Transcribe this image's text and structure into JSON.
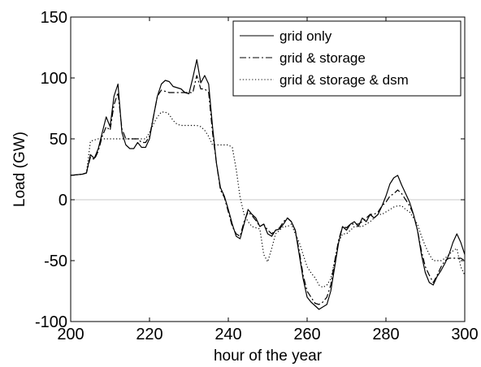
{
  "chart_data": {
    "type": "line",
    "title": "",
    "xlabel": "hour of the year",
    "ylabel": "Load (GW)",
    "xlim": [
      200,
      300
    ],
    "ylim": [
      -100,
      150
    ],
    "xticks": [
      200,
      220,
      240,
      260,
      280,
      300
    ],
    "yticks": [
      -100,
      -50,
      0,
      50,
      100,
      150
    ],
    "grid": false,
    "zero_line": true,
    "legend": {
      "position": "top-right"
    },
    "series": [
      {
        "name": "grid only",
        "style": "solid",
        "color": "#000000",
        "points": [
          [
            200,
            20
          ],
          [
            203,
            21
          ],
          [
            204,
            22
          ],
          [
            205,
            37
          ],
          [
            206,
            34
          ],
          [
            207,
            42
          ],
          [
            208,
            55
          ],
          [
            209,
            68
          ],
          [
            210,
            60
          ],
          [
            211,
            85
          ],
          [
            212,
            95
          ],
          [
            213,
            55
          ],
          [
            214,
            45
          ],
          [
            215,
            42
          ],
          [
            216,
            42
          ],
          [
            217,
            47
          ],
          [
            218,
            43
          ],
          [
            219,
            43
          ],
          [
            220,
            50
          ],
          [
            221,
            68
          ],
          [
            222,
            85
          ],
          [
            223,
            95
          ],
          [
            224,
            98
          ],
          [
            225,
            97
          ],
          [
            226,
            93
          ],
          [
            227,
            92
          ],
          [
            228,
            91
          ],
          [
            229,
            88
          ],
          [
            230,
            87
          ],
          [
            231,
            100
          ],
          [
            232,
            115
          ],
          [
            233,
            96
          ],
          [
            234,
            102
          ],
          [
            235,
            95
          ],
          [
            236,
            60
          ],
          [
            237,
            30
          ],
          [
            238,
            10
          ],
          [
            239,
            3
          ],
          [
            240,
            -8
          ],
          [
            241,
            -20
          ],
          [
            242,
            -30
          ],
          [
            243,
            -32
          ],
          [
            244,
            -20
          ],
          [
            245,
            -8
          ],
          [
            246,
            -12
          ],
          [
            247,
            -15
          ],
          [
            248,
            -22
          ],
          [
            249,
            -20
          ],
          [
            250,
            -28
          ],
          [
            251,
            -30
          ],
          [
            252,
            -25
          ],
          [
            253,
            -24
          ],
          [
            254,
            -20
          ],
          [
            255,
            -15
          ],
          [
            256,
            -18
          ],
          [
            257,
            -25
          ],
          [
            258,
            -45
          ],
          [
            259,
            -65
          ],
          [
            260,
            -80
          ],
          [
            261,
            -84
          ],
          [
            262,
            -87
          ],
          [
            263,
            -90
          ],
          [
            264,
            -88
          ],
          [
            265,
            -86
          ],
          [
            266,
            -75
          ],
          [
            267,
            -55
          ],
          [
            268,
            -35
          ],
          [
            269,
            -22
          ],
          [
            270,
            -25
          ],
          [
            271,
            -20
          ],
          [
            272,
            -18
          ],
          [
            273,
            -22
          ],
          [
            274,
            -15
          ],
          [
            275,
            -18
          ],
          [
            276,
            -12
          ],
          [
            277,
            -15
          ],
          [
            278,
            -12
          ],
          [
            279,
            -5
          ],
          [
            280,
            3
          ],
          [
            281,
            13
          ],
          [
            282,
            18
          ],
          [
            283,
            20
          ],
          [
            284,
            12
          ],
          [
            285,
            5
          ],
          [
            286,
            -2
          ],
          [
            287,
            -12
          ],
          [
            288,
            -25
          ],
          [
            289,
            -45
          ],
          [
            290,
            -60
          ],
          [
            291,
            -68
          ],
          [
            292,
            -70
          ],
          [
            293,
            -63
          ],
          [
            294,
            -58
          ],
          [
            295,
            -52
          ],
          [
            296,
            -45
          ],
          [
            297,
            -35
          ],
          [
            298,
            -28
          ],
          [
            299,
            -35
          ],
          [
            300,
            -45
          ]
        ]
      },
      {
        "name": "grid & storage",
        "style": "dashdot",
        "color": "#000000",
        "points": [
          [
            200,
            20
          ],
          [
            203,
            21
          ],
          [
            204,
            22
          ],
          [
            205,
            35
          ],
          [
            206,
            33
          ],
          [
            207,
            40
          ],
          [
            208,
            52
          ],
          [
            209,
            60
          ],
          [
            210,
            57
          ],
          [
            211,
            78
          ],
          [
            212,
            88
          ],
          [
            213,
            58
          ],
          [
            214,
            50
          ],
          [
            215,
            50
          ],
          [
            216,
            50
          ],
          [
            217,
            50
          ],
          [
            218,
            47
          ],
          [
            219,
            47
          ],
          [
            220,
            52
          ],
          [
            221,
            68
          ],
          [
            222,
            85
          ],
          [
            223,
            90
          ],
          [
            224,
            89
          ],
          [
            225,
            88
          ],
          [
            226,
            88
          ],
          [
            227,
            88
          ],
          [
            228,
            88
          ],
          [
            229,
            88
          ],
          [
            230,
            88
          ],
          [
            231,
            88
          ],
          [
            232,
            102
          ],
          [
            233,
            91
          ],
          [
            234,
            91
          ],
          [
            235,
            88
          ],
          [
            236,
            55
          ],
          [
            237,
            30
          ],
          [
            238,
            8
          ],
          [
            239,
            2
          ],
          [
            240,
            -10
          ],
          [
            241,
            -22
          ],
          [
            242,
            -28
          ],
          [
            243,
            -30
          ],
          [
            244,
            -18
          ],
          [
            245,
            -10
          ],
          [
            246,
            -13
          ],
          [
            247,
            -17
          ],
          [
            248,
            -22
          ],
          [
            249,
            -20
          ],
          [
            250,
            -25
          ],
          [
            251,
            -28
          ],
          [
            252,
            -25
          ],
          [
            253,
            -23
          ],
          [
            254,
            -18
          ],
          [
            255,
            -15
          ],
          [
            256,
            -18
          ],
          [
            257,
            -25
          ],
          [
            258,
            -42
          ],
          [
            259,
            -62
          ],
          [
            260,
            -75
          ],
          [
            261,
            -80
          ],
          [
            262,
            -85
          ],
          [
            263,
            -86
          ],
          [
            264,
            -84
          ],
          [
            265,
            -80
          ],
          [
            266,
            -70
          ],
          [
            267,
            -50
          ],
          [
            268,
            -33
          ],
          [
            269,
            -22
          ],
          [
            270,
            -23
          ],
          [
            271,
            -20
          ],
          [
            272,
            -20
          ],
          [
            273,
            -20
          ],
          [
            274,
            -18
          ],
          [
            275,
            -15
          ],
          [
            276,
            -12
          ],
          [
            277,
            -12
          ],
          [
            278,
            -10
          ],
          [
            279,
            -5
          ],
          [
            280,
            -2
          ],
          [
            281,
            3
          ],
          [
            282,
            5
          ],
          [
            283,
            8
          ],
          [
            284,
            5
          ],
          [
            285,
            0
          ],
          [
            286,
            -5
          ],
          [
            287,
            -12
          ],
          [
            288,
            -25
          ],
          [
            289,
            -42
          ],
          [
            290,
            -55
          ],
          [
            291,
            -62
          ],
          [
            292,
            -68
          ],
          [
            293,
            -62
          ],
          [
            294,
            -55
          ],
          [
            295,
            -50
          ],
          [
            296,
            -48
          ],
          [
            297,
            -48
          ],
          [
            298,
            -48
          ],
          [
            299,
            -48
          ],
          [
            300,
            -50
          ]
        ]
      },
      {
        "name": "grid & storage & dsm",
        "style": "dotted",
        "color": "#000000",
        "points": [
          [
            200,
            20
          ],
          [
            203,
            21
          ],
          [
            204,
            22
          ],
          [
            205,
            48
          ],
          [
            206,
            49
          ],
          [
            207,
            50
          ],
          [
            208,
            50
          ],
          [
            209,
            50
          ],
          [
            210,
            50
          ],
          [
            211,
            50
          ],
          [
            212,
            50
          ],
          [
            213,
            50
          ],
          [
            214,
            50
          ],
          [
            215,
            50
          ],
          [
            216,
            50
          ],
          [
            217,
            50
          ],
          [
            218,
            50
          ],
          [
            219,
            50
          ],
          [
            220,
            55
          ],
          [
            221,
            62
          ],
          [
            222,
            68
          ],
          [
            223,
            72
          ],
          [
            224,
            72
          ],
          [
            225,
            70
          ],
          [
            226,
            65
          ],
          [
            227,
            62
          ],
          [
            228,
            61
          ],
          [
            229,
            61
          ],
          [
            230,
            61
          ],
          [
            231,
            61
          ],
          [
            232,
            61
          ],
          [
            233,
            60
          ],
          [
            234,
            57
          ],
          [
            235,
            52
          ],
          [
            236,
            45
          ],
          [
            237,
            45
          ],
          [
            238,
            45
          ],
          [
            239,
            45
          ],
          [
            240,
            45
          ],
          [
            241,
            43
          ],
          [
            242,
            25
          ],
          [
            243,
            2
          ],
          [
            244,
            -12
          ],
          [
            245,
            -18
          ],
          [
            246,
            -22
          ],
          [
            247,
            -23
          ],
          [
            248,
            -24
          ],
          [
            249,
            -45
          ],
          [
            250,
            -51
          ],
          [
            251,
            -40
          ],
          [
            252,
            -28
          ],
          [
            253,
            -25
          ],
          [
            254,
            -22
          ],
          [
            255,
            -22
          ],
          [
            256,
            -20
          ],
          [
            257,
            -28
          ],
          [
            258,
            -35
          ],
          [
            259,
            -45
          ],
          [
            260,
            -55
          ],
          [
            261,
            -60
          ],
          [
            262,
            -64
          ],
          [
            263,
            -70
          ],
          [
            264,
            -72
          ],
          [
            265,
            -70
          ],
          [
            266,
            -65
          ],
          [
            267,
            -50
          ],
          [
            268,
            -35
          ],
          [
            269,
            -28
          ],
          [
            270,
            -28
          ],
          [
            271,
            -25
          ],
          [
            272,
            -22
          ],
          [
            273,
            -22
          ],
          [
            274,
            -22
          ],
          [
            275,
            -20
          ],
          [
            276,
            -18
          ],
          [
            277,
            -15
          ],
          [
            278,
            -12
          ],
          [
            279,
            -12
          ],
          [
            280,
            -10
          ],
          [
            281,
            -8
          ],
          [
            282,
            -6
          ],
          [
            283,
            -5
          ],
          [
            284,
            -5
          ],
          [
            285,
            -8
          ],
          [
            286,
            -10
          ],
          [
            287,
            -15
          ],
          [
            288,
            -20
          ],
          [
            289,
            -30
          ],
          [
            290,
            -38
          ],
          [
            291,
            -45
          ],
          [
            292,
            -50
          ],
          [
            293,
            -50
          ],
          [
            294,
            -50
          ],
          [
            295,
            -48
          ],
          [
            296,
            -45
          ],
          [
            297,
            -42
          ],
          [
            298,
            -40
          ],
          [
            299,
            -55
          ],
          [
            300,
            -62
          ]
        ]
      }
    ]
  }
}
